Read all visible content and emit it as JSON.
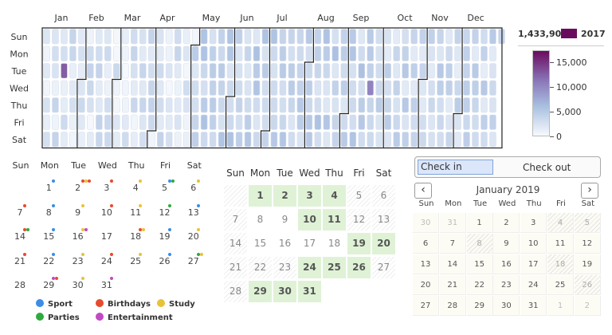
{
  "heatmap": {
    "months": [
      "Jan",
      "Feb",
      "Mar",
      "Apr",
      "May",
      "Jun",
      "Jul",
      "Aug",
      "Sep",
      "Oct",
      "Nov",
      "Dec"
    ],
    "weekdays": [
      "Sun",
      "Mon",
      "Tue",
      "Wed",
      "Thu",
      "Fri",
      "Sat"
    ],
    "year": "2017",
    "total": "1,433,906",
    "scale_ticks": [
      "15,000",
      "10,000",
      "5,000",
      "0"
    ],
    "scale_max": 17500,
    "colors": {
      "low": "#eef3fa",
      "mid": "#9fb6d9",
      "high": "#6a0a5e"
    }
  },
  "events": {
    "weekdays": [
      "Sun",
      "Mon",
      "Tue",
      "Wed",
      "Thu",
      "Fri",
      "Sat"
    ],
    "days": [
      {
        "d": "1",
        "dots": [
          "#3a8ee6"
        ]
      },
      {
        "d": "2",
        "dots": [
          "#e84a2e",
          "#e8c23a",
          "#e84a2e"
        ]
      },
      {
        "d": "3",
        "dots": [
          "#e84a2e"
        ]
      },
      {
        "d": "4",
        "dots": [
          "#e8c23a"
        ]
      },
      {
        "d": "5",
        "dots": [
          "#3a8ee6",
          "#2faa3f"
        ]
      },
      {
        "d": "6",
        "dots": [
          "#e8c23a"
        ]
      },
      {
        "d": "7",
        "dots": [
          "#e84a2e"
        ]
      },
      {
        "d": "8",
        "dots": [
          "#3a8ee6"
        ]
      },
      {
        "d": "9",
        "dots": [
          "#e8c23a"
        ]
      },
      {
        "d": "10",
        "dots": [
          "#e84a2e"
        ]
      },
      {
        "d": "11",
        "dots": [
          "#e8c23a"
        ]
      },
      {
        "d": "12",
        "dots": [
          "#2faa3f"
        ]
      },
      {
        "d": "13",
        "dots": [
          "#3a8ee6"
        ]
      },
      {
        "d": "14",
        "dots": [
          "#e84a2e",
          "#2faa3f"
        ]
      },
      {
        "d": "15",
        "dots": [
          "#3a8ee6"
        ]
      },
      {
        "d": "16",
        "dots": [
          "#e8c23a",
          "#c24ac2"
        ]
      },
      {
        "d": "17",
        "dots": []
      },
      {
        "d": "18",
        "dots": [
          "#e84a2e",
          "#e8c23a"
        ]
      },
      {
        "d": "19",
        "dots": [
          "#3a8ee6"
        ]
      },
      {
        "d": "20",
        "dots": [
          "#e8c23a"
        ]
      },
      {
        "d": "21",
        "dots": [
          "#e84a2e"
        ]
      },
      {
        "d": "22",
        "dots": [
          "#3a8ee6"
        ]
      },
      {
        "d": "23",
        "dots": [
          "#e8c23a"
        ]
      },
      {
        "d": "24",
        "dots": [
          "#e84a2e"
        ]
      },
      {
        "d": "25",
        "dots": [
          "#e8c23a"
        ]
      },
      {
        "d": "26",
        "dots": [
          "#3a8ee6"
        ]
      },
      {
        "d": "27",
        "dots": [
          "#2faa3f",
          "#e8c23a"
        ]
      },
      {
        "d": "28",
        "dots": []
      },
      {
        "d": "29",
        "dots": [
          "#c24ac2",
          "#e84a2e"
        ]
      },
      {
        "d": "30",
        "dots": [
          "#e8c23a"
        ]
      },
      {
        "d": "31",
        "dots": [
          "#c24ac2"
        ]
      }
    ],
    "first_weekday": 1,
    "legend": [
      {
        "label": "Sport",
        "color": "#3a8ee6"
      },
      {
        "label": "Birthdays",
        "color": "#e84a2e"
      },
      {
        "label": "Study",
        "color": "#e8c23a"
      },
      {
        "label": "Parties",
        "color": "#2faa3f"
      },
      {
        "label": "Entertainment",
        "color": "#c24ac2"
      }
    ]
  },
  "green_month": {
    "weekdays": [
      "Sun",
      "Mon",
      "Tue",
      "Wed",
      "Thu",
      "Fri",
      "Sat"
    ],
    "rows": [
      [
        {
          "d": "",
          "s": "x"
        },
        {
          "d": "1",
          "s": "on"
        },
        {
          "d": "2",
          "s": "on"
        },
        {
          "d": "3",
          "s": "on"
        },
        {
          "d": "4",
          "s": "on"
        },
        {
          "d": "5",
          "s": "off"
        },
        {
          "d": "6",
          "s": "off"
        }
      ],
      [
        {
          "d": "7",
          "s": "off"
        },
        {
          "d": "8",
          "s": "plain"
        },
        {
          "d": "9",
          "s": "plain"
        },
        {
          "d": "10",
          "s": "on"
        },
        {
          "d": "11",
          "s": "on"
        },
        {
          "d": "12",
          "s": "off"
        },
        {
          "d": "13",
          "s": "off"
        }
      ],
      [
        {
          "d": "14",
          "s": "off"
        },
        {
          "d": "15",
          "s": "plain"
        },
        {
          "d": "16",
          "s": "plain"
        },
        {
          "d": "17",
          "s": "plain"
        },
        {
          "d": "18",
          "s": "plain"
        },
        {
          "d": "19",
          "s": "on"
        },
        {
          "d": "20",
          "s": "on"
        }
      ],
      [
        {
          "d": "21",
          "s": "off"
        },
        {
          "d": "22",
          "s": "off"
        },
        {
          "d": "23",
          "s": "off"
        },
        {
          "d": "24",
          "s": "on"
        },
        {
          "d": "25",
          "s": "on"
        },
        {
          "d": "26",
          "s": "on"
        },
        {
          "d": "27",
          "s": "off"
        }
      ],
      [
        {
          "d": "28",
          "s": "off"
        },
        {
          "d": "29",
          "s": "on"
        },
        {
          "d": "30",
          "s": "on"
        },
        {
          "d": "31",
          "s": "on"
        }
      ]
    ]
  },
  "picker": {
    "check_in": "Check in",
    "check_out": "Check out",
    "month_title": "January 2019",
    "prev_icon": "chevron-left-icon",
    "next_icon": "chevron-right-icon",
    "weekdays": [
      "Sun",
      "Mon",
      "Tue",
      "Wed",
      "Thu",
      "Fri",
      "Sat"
    ],
    "rows": [
      [
        {
          "d": "30",
          "s": "dim"
        },
        {
          "d": "31",
          "s": "dim"
        },
        {
          "d": "1",
          "s": "n"
        },
        {
          "d": "2",
          "s": "n"
        },
        {
          "d": "3",
          "s": "n"
        },
        {
          "d": "4",
          "s": "hatch"
        },
        {
          "d": "5",
          "s": "hatch"
        }
      ],
      [
        {
          "d": "6",
          "s": "n"
        },
        {
          "d": "7",
          "s": "n"
        },
        {
          "d": "8",
          "s": "hatch"
        },
        {
          "d": "9",
          "s": "n"
        },
        {
          "d": "10",
          "s": "n"
        },
        {
          "d": "11",
          "s": "n"
        },
        {
          "d": "12",
          "s": "n"
        }
      ],
      [
        {
          "d": "13",
          "s": "n"
        },
        {
          "d": "14",
          "s": "n"
        },
        {
          "d": "15",
          "s": "n"
        },
        {
          "d": "16",
          "s": "n"
        },
        {
          "d": "17",
          "s": "n"
        },
        {
          "d": "18",
          "s": "hatch"
        },
        {
          "d": "19",
          "s": "n"
        }
      ],
      [
        {
          "d": "20",
          "s": "n"
        },
        {
          "d": "21",
          "s": "n"
        },
        {
          "d": "22",
          "s": "n"
        },
        {
          "d": "23",
          "s": "n"
        },
        {
          "d": "24",
          "s": "n"
        },
        {
          "d": "25",
          "s": "n"
        },
        {
          "d": "26",
          "s": "hatch"
        }
      ],
      [
        {
          "d": "27",
          "s": "n"
        },
        {
          "d": "28",
          "s": "n"
        },
        {
          "d": "29",
          "s": "n"
        },
        {
          "d": "30",
          "s": "n"
        },
        {
          "d": "31",
          "s": "n"
        },
        {
          "d": "1",
          "s": "dim"
        },
        {
          "d": "2",
          "s": "dim"
        }
      ]
    ]
  }
}
